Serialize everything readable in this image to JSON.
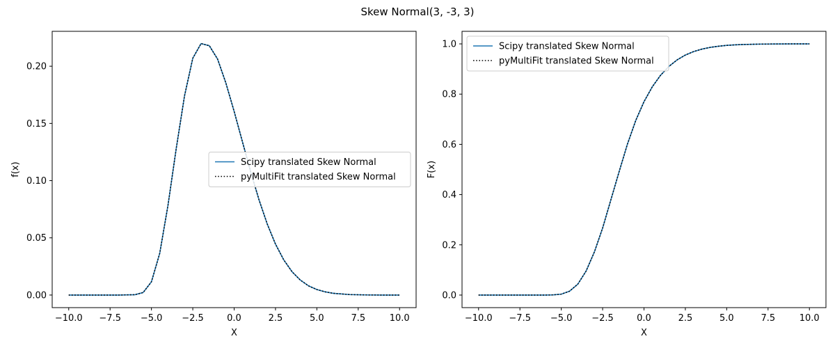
{
  "figure": {
    "title": "Skew Normal(3, -3, 3)",
    "background": "#ffffff"
  },
  "chart_data": [
    {
      "type": "line",
      "id": "pdf",
      "xlabel": "X",
      "ylabel": "f(x)",
      "xlim": [
        -11.0,
        11.0
      ],
      "ylim": [
        -0.011,
        0.2305
      ],
      "xticks": [
        -10.0,
        -7.5,
        -5.0,
        -2.5,
        0.0,
        2.5,
        5.0,
        7.5,
        10.0
      ],
      "xtick_labels": [
        "−10.0",
        "−7.5",
        "−5.0",
        "−2.5",
        "0.0",
        "2.5",
        "5.0",
        "7.5",
        "10.0"
      ],
      "yticks": [
        0.0,
        0.05,
        0.1,
        0.15,
        0.2
      ],
      "ytick_labels": [
        "0.00",
        "0.05",
        "0.10",
        "0.15",
        "0.20"
      ],
      "legend": "center-right",
      "grid": false,
      "x": [
        -10,
        -9,
        -8,
        -7,
        -6,
        -5.5,
        -5,
        -4.5,
        -4,
        -3.5,
        -3,
        -2.5,
        -2,
        -1.5,
        -1,
        -0.5,
        0,
        0.5,
        1,
        1.5,
        2,
        2.5,
        3,
        3.5,
        4,
        4.5,
        5,
        5.5,
        6,
        7,
        8,
        9,
        10
      ],
      "series": [
        {
          "name": "Scipy translated Skew Normal",
          "color": "#1f77b4",
          "style": "solid",
          "values": [
            0.0,
            0.0,
            0.0,
            0.0,
            0.0003,
            0.0022,
            0.0116,
            0.0364,
            0.0784,
            0.1282,
            0.1741,
            0.207,
            0.2198,
            0.2179,
            0.2062,
            0.1853,
            0.1605,
            0.134,
            0.1077,
            0.0834,
            0.0621,
            0.0445,
            0.0307,
            0.0204,
            0.0131,
            0.008,
            0.0048,
            0.0028,
            0.0015,
            0.0004,
            0.0001,
            0.0,
            0.0
          ]
        },
        {
          "name": "pyMultiFit translated Skew Normal",
          "color": "#000000",
          "style": "dotted",
          "values": [
            0.0,
            0.0,
            0.0,
            0.0,
            0.0003,
            0.0022,
            0.0116,
            0.0364,
            0.0784,
            0.1282,
            0.1741,
            0.207,
            0.2198,
            0.2179,
            0.2062,
            0.1853,
            0.1605,
            0.134,
            0.1077,
            0.0834,
            0.0621,
            0.0445,
            0.0307,
            0.0204,
            0.0131,
            0.008,
            0.0048,
            0.0028,
            0.0015,
            0.0004,
            0.0001,
            0.0,
            0.0
          ]
        }
      ]
    },
    {
      "type": "line",
      "id": "cdf",
      "xlabel": "X",
      "ylabel": "F(x)",
      "xlim": [
        -11.0,
        11.0
      ],
      "ylim": [
        -0.05,
        1.05
      ],
      "xticks": [
        -10.0,
        -7.5,
        -5.0,
        -2.5,
        0.0,
        2.5,
        5.0,
        7.5,
        10.0
      ],
      "xtick_labels": [
        "−10.0",
        "−7.5",
        "−5.0",
        "−2.5",
        "0.0",
        "2.5",
        "5.0",
        "7.5",
        "10.0"
      ],
      "yticks": [
        0.0,
        0.2,
        0.4,
        0.6,
        0.8,
        1.0
      ],
      "ytick_labels": [
        "0.0",
        "0.2",
        "0.4",
        "0.6",
        "0.8",
        "1.0"
      ],
      "legend": "upper-left",
      "grid": false,
      "x": [
        -10,
        -9,
        -8,
        -7,
        -6,
        -5.5,
        -5,
        -4.5,
        -4,
        -3.5,
        -3,
        -2.5,
        -2,
        -1.5,
        -1,
        -0.5,
        0,
        0.5,
        1,
        1.5,
        2,
        2.5,
        3,
        3.5,
        4,
        4.5,
        5,
        5.5,
        6,
        7,
        8,
        9,
        10
      ],
      "series": [
        {
          "name": "Scipy translated Skew Normal",
          "color": "#1f77b4",
          "style": "solid",
          "values": [
            0.0,
            0.0,
            0.0,
            0.0,
            0.0001,
            0.0007,
            0.0037,
            0.0154,
            0.0435,
            0.0955,
            0.1714,
            0.2669,
            0.3796,
            0.492,
            0.6012,
            0.6948,
            0.7698,
            0.829,
            0.875,
            0.91,
            0.9362,
            0.9555,
            0.9694,
            0.9792,
            0.986,
            0.9907,
            0.994,
            0.9962,
            0.9976,
            0.9991,
            0.9997,
            0.9999,
            1.0
          ]
        },
        {
          "name": "pyMultiFit translated Skew Normal",
          "color": "#000000",
          "style": "dotted",
          "values": [
            0.0,
            0.0,
            0.0,
            0.0,
            0.0001,
            0.0007,
            0.0037,
            0.0154,
            0.0435,
            0.0955,
            0.1714,
            0.2669,
            0.3796,
            0.492,
            0.6012,
            0.6948,
            0.7698,
            0.829,
            0.875,
            0.91,
            0.9362,
            0.9555,
            0.9694,
            0.9792,
            0.986,
            0.9907,
            0.994,
            0.9962,
            0.9976,
            0.9991,
            0.9997,
            0.9999,
            1.0
          ]
        }
      ]
    }
  ]
}
